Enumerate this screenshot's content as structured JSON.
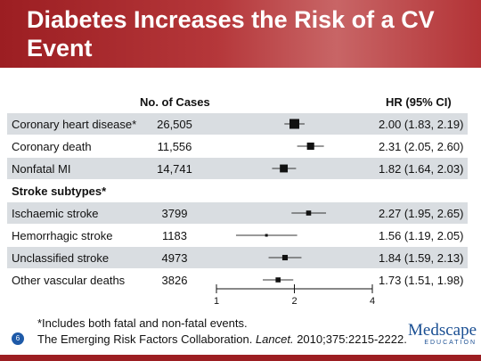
{
  "slide": {
    "title": "Diabetes Increases the Risk of a CV Event",
    "page_number": "6",
    "footnote": "*Includes both fatal and non-fatal events.",
    "citation_authors": "The Emerging Risk Factors Collaboration. ",
    "citation_journal": "Lancet.",
    "citation_rest": " 2010;375:2215-2222.",
    "logo_text": "Medscape",
    "logo_sub": "EDUCATION"
  },
  "table": {
    "col_cases": "No. of Cases",
    "col_hr": "HR (95% CI)",
    "rows": [
      {
        "label": "Coronary heart disease*",
        "cases": "26,505",
        "hr": "2.00 (1.83, 2.19)",
        "shaded": true
      },
      {
        "label": "Coronary death",
        "cases": "11,556",
        "hr": "2.31 (2.05, 2.60)",
        "shaded": false
      },
      {
        "label": "Nonfatal MI",
        "cases": "14,741",
        "hr": "1.82 (1.64, 2.03)",
        "shaded": true
      },
      {
        "label": "Stroke subtypes*",
        "cases": "",
        "hr": "",
        "shaded": false,
        "header": true
      },
      {
        "label": "Ischaemic stroke",
        "cases": "3799",
        "hr": "2.27 (1.95, 2.65)",
        "shaded": true
      },
      {
        "label": "Hemorrhagic stroke",
        "cases": "1183",
        "hr": "1.56 (1.19, 2.05)",
        "shaded": false
      },
      {
        "label": "Unclassified stroke",
        "cases": "4973",
        "hr": "1.84 (1.59, 2.13)",
        "shaded": true
      },
      {
        "label": "Other vascular deaths",
        "cases": "3826",
        "hr": "1.73 (1.51, 1.98)",
        "shaded": false
      }
    ]
  },
  "chart_data": {
    "type": "forest",
    "scale": "log",
    "xlim": [
      1,
      4
    ],
    "xticks": [
      1,
      2,
      4
    ],
    "xtick_labels": [
      "1",
      "2",
      "4"
    ],
    "categories": [
      "Coronary heart disease*",
      "Coronary death",
      "Nonfatal MI",
      "Ischaemic stroke",
      "Hemorrhagic stroke",
      "Unclassified stroke",
      "Other vascular deaths"
    ],
    "hr": [
      2.0,
      2.31,
      1.82,
      2.27,
      1.56,
      1.84,
      1.73
    ],
    "ci_low": [
      1.83,
      2.05,
      1.64,
      1.95,
      1.19,
      1.59,
      1.51
    ],
    "ci_high": [
      2.19,
      2.6,
      2.03,
      2.65,
      2.05,
      2.13,
      1.98
    ],
    "cases": [
      26505,
      11556,
      14741,
      3799,
      1183,
      4973,
      3826
    ]
  }
}
